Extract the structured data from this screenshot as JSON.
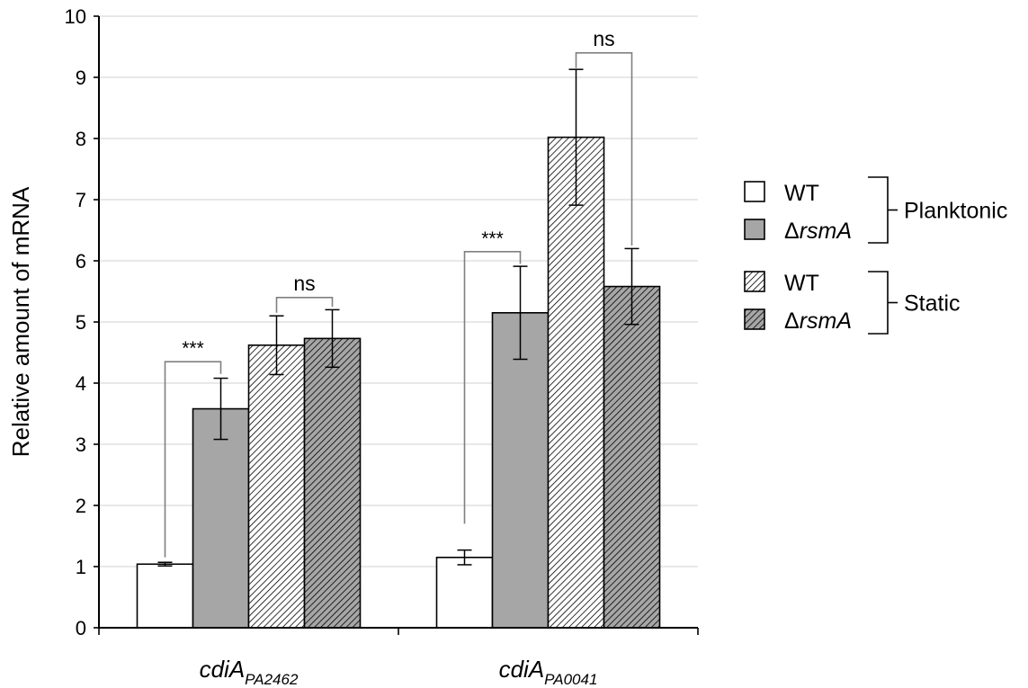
{
  "chart_data": {
    "type": "bar",
    "ylabel": "Relative amount of mRNA",
    "ylim": [
      0,
      10
    ],
    "yticks": [
      0,
      1,
      2,
      3,
      4,
      5,
      6,
      7,
      8,
      9,
      10
    ],
    "grid": true,
    "legend_position": "right",
    "categories": [
      {
        "base": "cdiA",
        "sub": "PA2462"
      },
      {
        "base": "cdiA",
        "sub": "PA0041"
      }
    ],
    "series": [
      {
        "name": "WT",
        "prefix": "",
        "italic": "",
        "group": "Planktonic",
        "fill": "#ffffff",
        "pattern": "none",
        "values": [
          1.04,
          1.15
        ],
        "errors": [
          0.03,
          0.12
        ]
      },
      {
        "name": "ΔrsmA",
        "prefix": "Δ",
        "italic": "rsmA",
        "group": "Planktonic",
        "fill": "#a6a6a6",
        "pattern": "none",
        "values": [
          3.58,
          5.15
        ],
        "errors": [
          0.5,
          0.76
        ]
      },
      {
        "name": "WT",
        "prefix": "",
        "italic": "",
        "group": "Static",
        "fill": "#ffffff",
        "pattern": "hatch",
        "values": [
          4.62,
          8.02
        ],
        "errors": [
          0.48,
          1.11
        ]
      },
      {
        "name": "ΔrsmA",
        "prefix": "Δ",
        "italic": "rsmA",
        "group": "Static",
        "fill": "#a6a6a6",
        "pattern": "hatch",
        "values": [
          4.73,
          5.58
        ],
        "errors": [
          0.47,
          0.62
        ]
      }
    ],
    "legend_groups": [
      "Planktonic",
      "Static"
    ],
    "significance": [
      {
        "category": 0,
        "from_series": 0,
        "to_series": 1,
        "label": "***",
        "y": 4.35,
        "start": 1.15,
        "end": 4.15
      },
      {
        "category": 0,
        "from_series": 2,
        "to_series": 3,
        "label": "ns",
        "y": 5.4,
        "start": 5.15,
        "end": 5.25
      },
      {
        "category": 1,
        "from_series": 0,
        "to_series": 1,
        "label": "***",
        "y": 6.15,
        "start": 1.7,
        "end": 5.95
      },
      {
        "category": 1,
        "from_series": 2,
        "to_series": 3,
        "label": "ns",
        "y": 9.4,
        "start": 9.15,
        "end": 6.25
      }
    ]
  },
  "colors": {
    "grid": "#d9d9d9",
    "axis": "#000000",
    "bracket": "#808080",
    "gray_fill": "#a6a6a6",
    "white_fill": "#ffffff"
  }
}
